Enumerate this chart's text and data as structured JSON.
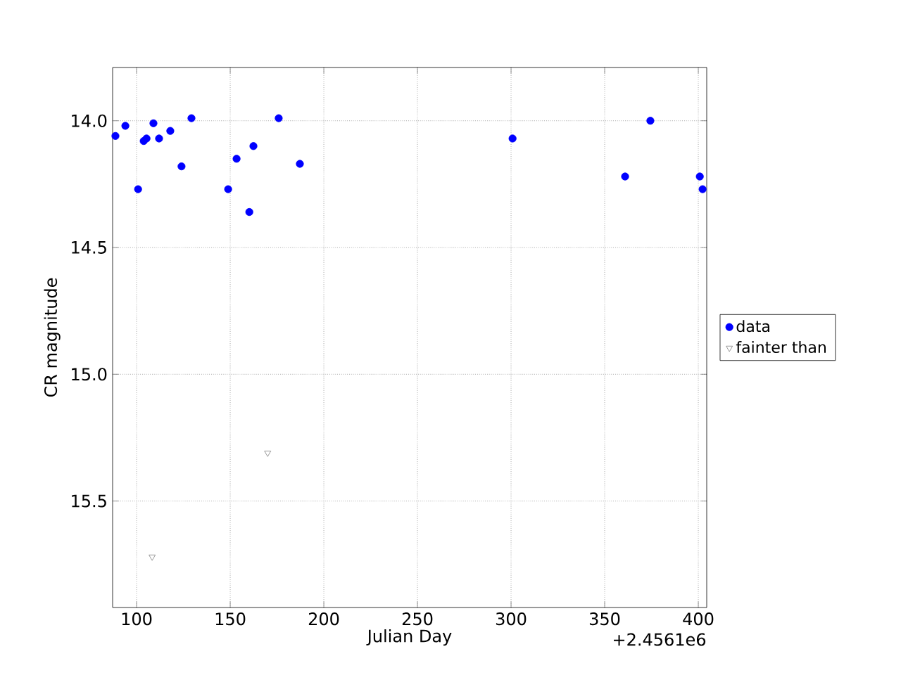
{
  "chart_data": {
    "type": "scatter",
    "xlabel": "Julian Day",
    "ylabel": "CR magnitude",
    "annotations": [
      "+2.4561e6"
    ],
    "series": [
      {
        "name": "data",
        "color": "#0000ff",
        "marker": "circle",
        "x": [
          88.7,
          94,
          100.8,
          103.8,
          105.3,
          109,
          112,
          118,
          124,
          129.3,
          148.9,
          153.4,
          160.2,
          162.4,
          175.9,
          187.2,
          300.8,
          360.9,
          374.4,
          400.8,
          402.3
        ],
        "values": [
          14.06,
          14.02,
          14.27,
          14.08,
          14.07,
          14.01,
          14.07,
          14.04,
          14.18,
          13.99,
          14.27,
          14.15,
          14.36,
          14.1,
          13.99,
          14.17,
          14.07,
          14.22,
          14.0,
          14.22,
          14.27
        ]
      },
      {
        "name": "fainter than",
        "color": "#808080",
        "marker": "triangle",
        "x": [
          108.3,
          170
        ],
        "values": [
          15.72,
          15.31
        ]
      }
    ],
    "xlim": [
      87.2,
      404.5
    ],
    "ylim": [
      15.92,
      13.79
    ],
    "xticks": [
      100,
      150,
      200,
      250,
      300,
      350,
      400
    ],
    "yticks": [
      {
        "value": 14,
        "label": "14.0"
      },
      {
        "value": 14.5,
        "label": "14.5"
      },
      {
        "value": 15,
        "label": "15.0"
      },
      {
        "value": 15.5,
        "label": "15.5"
      }
    ],
    "grid": true,
    "legend": "right"
  }
}
